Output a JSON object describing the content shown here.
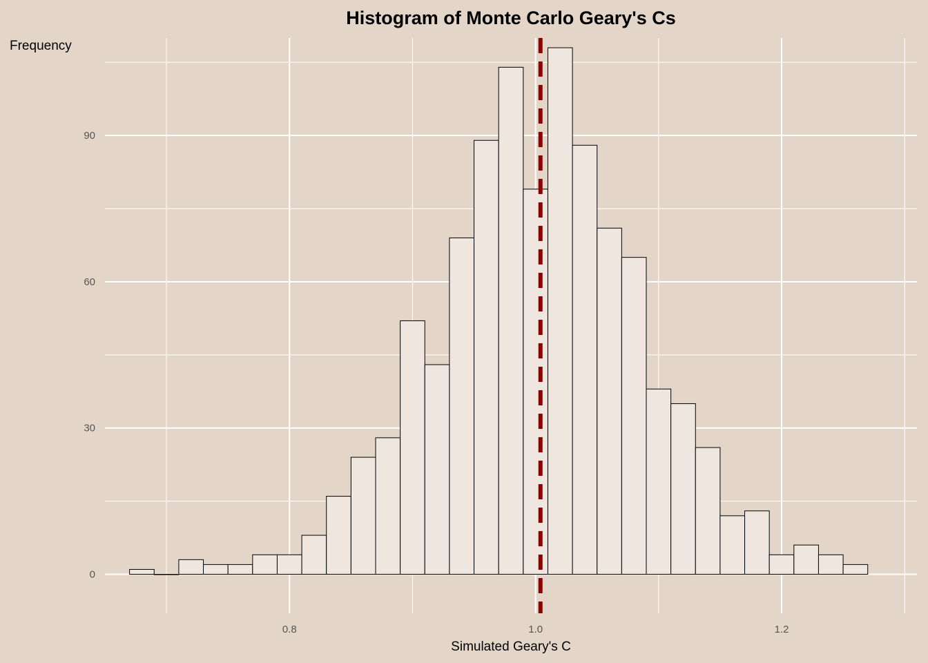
{
  "chart_data": {
    "type": "bar",
    "title": "Histogram of Monte Carlo Geary's Cs",
    "xlabel": "Simulated Geary's C",
    "ylabel": "Frequency",
    "xlim": [
      0.65,
      1.31
    ],
    "ylim": [
      -8,
      110
    ],
    "x_ticks": [
      0.8,
      1.0,
      1.2
    ],
    "x_tick_labels": [
      "0.8",
      "1.0",
      "1.2"
    ],
    "y_ticks": [
      0,
      30,
      60,
      90
    ],
    "y_tick_labels": [
      "0",
      "30",
      "60",
      "90"
    ],
    "bin_width": 0.02,
    "bins": [
      {
        "x0": 0.67,
        "x1": 0.69,
        "count": 1
      },
      {
        "x0": 0.69,
        "x1": 0.71,
        "count": 0
      },
      {
        "x0": 0.71,
        "x1": 0.73,
        "count": 3
      },
      {
        "x0": 0.73,
        "x1": 0.75,
        "count": 2
      },
      {
        "x0": 0.75,
        "x1": 0.77,
        "count": 2
      },
      {
        "x0": 0.77,
        "x1": 0.79,
        "count": 4
      },
      {
        "x0": 0.79,
        "x1": 0.81,
        "count": 4
      },
      {
        "x0": 0.81,
        "x1": 0.83,
        "count": 8
      },
      {
        "x0": 0.83,
        "x1": 0.85,
        "count": 16
      },
      {
        "x0": 0.85,
        "x1": 0.87,
        "count": 24
      },
      {
        "x0": 0.87,
        "x1": 0.89,
        "count": 28
      },
      {
        "x0": 0.89,
        "x1": 0.91,
        "count": 52
      },
      {
        "x0": 0.91,
        "x1": 0.93,
        "count": 43
      },
      {
        "x0": 0.93,
        "x1": 0.95,
        "count": 69
      },
      {
        "x0": 0.95,
        "x1": 0.97,
        "count": 89
      },
      {
        "x0": 0.97,
        "x1": 0.99,
        "count": 104
      },
      {
        "x0": 0.99,
        "x1": 1.01,
        "count": 79
      },
      {
        "x0": 1.01,
        "x1": 1.03,
        "count": 108
      },
      {
        "x0": 1.03,
        "x1": 1.05,
        "count": 88
      },
      {
        "x0": 1.05,
        "x1": 1.07,
        "count": 71
      },
      {
        "x0": 1.07,
        "x1": 1.09,
        "count": 65
      },
      {
        "x0": 1.09,
        "x1": 1.11,
        "count": 38
      },
      {
        "x0": 1.11,
        "x1": 1.13,
        "count": 35
      },
      {
        "x0": 1.13,
        "x1": 1.15,
        "count": 26
      },
      {
        "x0": 1.15,
        "x1": 1.17,
        "count": 12
      },
      {
        "x0": 1.17,
        "x1": 1.19,
        "count": 13
      },
      {
        "x0": 1.19,
        "x1": 1.21,
        "count": 4
      },
      {
        "x0": 1.21,
        "x1": 1.23,
        "count": 6
      },
      {
        "x0": 1.23,
        "x1": 1.25,
        "count": 4
      },
      {
        "x0": 1.25,
        "x1": 1.27,
        "count": 2
      }
    ],
    "reference_line": {
      "x": 1.004,
      "style": "dashed",
      "color": "#8b0000"
    },
    "grid": true,
    "colors": {
      "background": "#e3d6c9",
      "bar_fill": "#efe6e0",
      "bar_stroke": "#000000",
      "grid": "#ffffff"
    }
  }
}
